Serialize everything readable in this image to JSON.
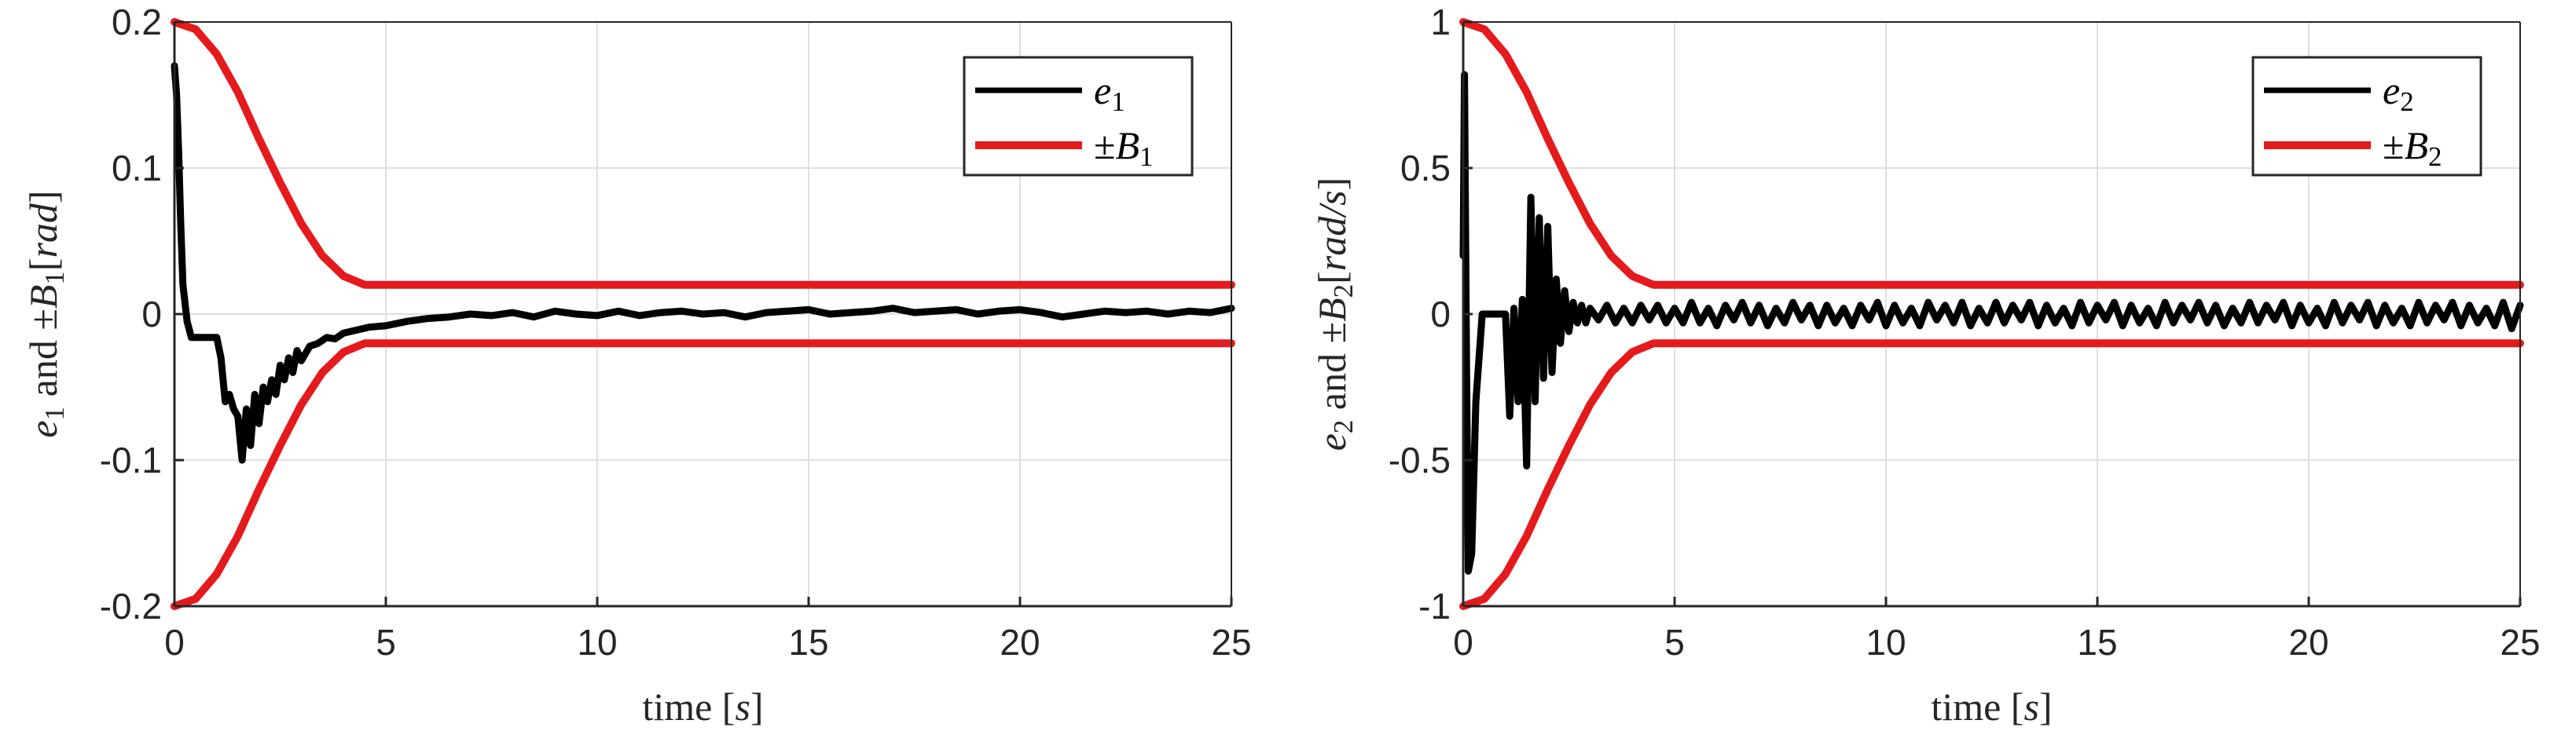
{
  "chart_data": [
    {
      "type": "line",
      "xlabel": "time [s]",
      "xlabel_parts": [
        {
          "text": "time ",
          "style": "normal"
        },
        {
          "text": "[",
          "style": "normal"
        },
        {
          "text": "s",
          "style": "italic"
        },
        {
          "text": "]",
          "style": "normal"
        }
      ],
      "ylabel": "e1 and ±B1[rad]",
      "ylabel_parts": [
        {
          "text": "e",
          "style": "italic"
        },
        {
          "text": "1",
          "style": "sub"
        },
        {
          "text": " and ±",
          "style": "normal"
        },
        {
          "text": "B",
          "style": "italic"
        },
        {
          "text": "1",
          "style": "sub"
        },
        {
          "text": "[",
          "style": "normal"
        },
        {
          "text": "rad",
          "style": "italic"
        },
        {
          "text": "]",
          "style": "normal"
        }
      ],
      "xlim": [
        0,
        25
      ],
      "ylim": [
        -0.2,
        0.2
      ],
      "xticks": [
        0,
        5,
        10,
        15,
        20,
        25
      ],
      "yticks": [
        -0.2,
        -0.1,
        0,
        0.1,
        0.2
      ],
      "xtick_labels": [
        "0",
        "5",
        "10",
        "15",
        "20",
        "25"
      ],
      "ytick_labels": [
        "-0.2",
        "-0.1",
        "0",
        "0.1",
        "0.2"
      ],
      "grid": true,
      "legend_position": "top-right",
      "legend": [
        {
          "symbol": "e",
          "sub": "1",
          "prefix": ""
        },
        {
          "symbol": "B",
          "sub": "1",
          "prefix": "±"
        }
      ],
      "series": [
        {
          "key": "error",
          "color": "#000000",
          "x": [
            0,
            0.05,
            0.1,
            0.15,
            0.2,
            0.3,
            0.4,
            0.5,
            0.8,
            1.0,
            1.1,
            1.2,
            1.3,
            1.4,
            1.5,
            1.6,
            1.7,
            1.8,
            1.9,
            2.0,
            2.1,
            2.2,
            2.3,
            2.4,
            2.5,
            2.6,
            2.7,
            2.8,
            2.9,
            3.0,
            3.2,
            3.4,
            3.6,
            3.8,
            4.0,
            4.3,
            4.6,
            5.0,
            5.5,
            6.0,
            6.5,
            7.0,
            7.5,
            8.0,
            8.5,
            9.0,
            9.5,
            10.0,
            10.5,
            11.0,
            11.5,
            12.0,
            12.5,
            13.0,
            13.5,
            14.0,
            14.5,
            15.0,
            15.5,
            16.0,
            16.5,
            17.0,
            17.5,
            18.0,
            18.5,
            19.0,
            19.5,
            20.0,
            20.5,
            21.0,
            21.5,
            22.0,
            22.5,
            23.0,
            23.5,
            24.0,
            24.5,
            25.0
          ],
          "y": [
            0.17,
            0.15,
            0.11,
            0.06,
            0.02,
            -0.005,
            -0.016,
            -0.016,
            -0.016,
            -0.016,
            -0.03,
            -0.06,
            -0.055,
            -0.065,
            -0.07,
            -0.1,
            -0.065,
            -0.09,
            -0.055,
            -0.075,
            -0.05,
            -0.06,
            -0.045,
            -0.055,
            -0.035,
            -0.045,
            -0.03,
            -0.04,
            -0.025,
            -0.032,
            -0.022,
            -0.02,
            -0.016,
            -0.017,
            -0.013,
            -0.011,
            -0.009,
            -0.008,
            -0.005,
            -0.003,
            -0.002,
            0.0,
            -0.001,
            0.001,
            -0.002,
            0.002,
            0.0,
            -0.001,
            0.002,
            -0.001,
            0.001,
            0.002,
            0.0,
            0.001,
            -0.002,
            0.001,
            0.002,
            0.003,
            0.0,
            0.001,
            0.002,
            0.004,
            0.001,
            0.002,
            0.003,
            0.0,
            0.002,
            0.003,
            0.001,
            -0.002,
            0.0,
            0.002,
            0.001,
            0.002,
            0.0,
            0.002,
            0.001,
            0.004
          ]
        },
        {
          "key": "bound_upper",
          "color": "#e41a1c",
          "x": [
            0,
            0.5,
            1.0,
            1.5,
            2.0,
            2.5,
            3.0,
            3.5,
            4.0,
            4.5,
            5.0,
            25.0
          ],
          "y": [
            0.2,
            0.195,
            0.178,
            0.152,
            0.12,
            0.09,
            0.062,
            0.04,
            0.026,
            0.02,
            0.02,
            0.02
          ]
        },
        {
          "key": "bound_lower",
          "color": "#e41a1c",
          "x": [
            0,
            0.5,
            1.0,
            1.5,
            2.0,
            2.5,
            3.0,
            3.5,
            4.0,
            4.5,
            5.0,
            25.0
          ],
          "y": [
            -0.2,
            -0.195,
            -0.178,
            -0.152,
            -0.12,
            -0.09,
            -0.062,
            -0.04,
            -0.026,
            -0.02,
            -0.02,
            -0.02
          ]
        }
      ]
    },
    {
      "type": "line",
      "xlabel": "time [s]",
      "xlabel_parts": [
        {
          "text": "time ",
          "style": "normal"
        },
        {
          "text": "[",
          "style": "normal"
        },
        {
          "text": "s",
          "style": "italic"
        },
        {
          "text": "]",
          "style": "normal"
        }
      ],
      "ylabel": "e2 and ±B2[rad/s]",
      "ylabel_parts": [
        {
          "text": "e",
          "style": "italic"
        },
        {
          "text": "2",
          "style": "sub"
        },
        {
          "text": " and ±",
          "style": "normal"
        },
        {
          "text": "B",
          "style": "italic"
        },
        {
          "text": "2",
          "style": "sub"
        },
        {
          "text": "[",
          "style": "normal"
        },
        {
          "text": "rad/s",
          "style": "italic"
        },
        {
          "text": "]",
          "style": "normal"
        }
      ],
      "xlim": [
        0,
        25
      ],
      "ylim": [
        -1,
        1
      ],
      "xticks": [
        0,
        5,
        10,
        15,
        20,
        25
      ],
      "yticks": [
        -1,
        -0.5,
        0,
        0.5,
        1
      ],
      "xtick_labels": [
        "0",
        "5",
        "10",
        "15",
        "20",
        "25"
      ],
      "ytick_labels": [
        "-1",
        "-0.5",
        "0",
        "0.5",
        "1"
      ],
      "grid": true,
      "legend_position": "top-right",
      "legend": [
        {
          "symbol": "e",
          "sub": "2",
          "prefix": ""
        },
        {
          "symbol": "B",
          "sub": "2",
          "prefix": "±"
        }
      ],
      "series": [
        {
          "key": "error",
          "color": "#000000",
          "x": [
            0,
            0.03,
            0.08,
            0.12,
            0.2,
            0.3,
            0.45,
            0.6,
            0.8,
            1.0,
            1.1,
            1.2,
            1.3,
            1.4,
            1.5,
            1.6,
            1.7,
            1.8,
            1.9,
            2.0,
            2.1,
            2.2,
            2.3,
            2.4,
            2.5,
            2.6,
            2.7,
            2.8,
            2.9,
            3.0,
            3.2,
            3.4,
            3.6,
            3.8,
            4.0,
            4.2,
            4.4,
            4.6,
            4.8,
            5.0,
            5.2,
            5.4,
            5.6,
            5.8,
            6.0,
            6.2,
            6.4,
            6.6,
            6.8,
            7.0,
            7.2,
            7.4,
            7.6,
            7.8,
            8.0,
            8.2,
            8.4,
            8.6,
            8.8,
            9.0,
            9.2,
            9.4,
            9.6,
            9.8,
            10.0,
            10.2,
            10.4,
            10.6,
            10.8,
            11.0,
            11.2,
            11.4,
            11.6,
            11.8,
            12.0,
            12.2,
            12.4,
            12.6,
            12.8,
            13.0,
            13.2,
            13.4,
            13.6,
            13.8,
            14.0,
            14.2,
            14.4,
            14.6,
            14.8,
            15.0,
            15.2,
            15.4,
            15.6,
            15.8,
            16.0,
            16.2,
            16.4,
            16.6,
            16.8,
            17.0,
            17.2,
            17.4,
            17.6,
            17.8,
            18.0,
            18.2,
            18.4,
            18.6,
            18.8,
            19.0,
            19.2,
            19.4,
            19.6,
            19.8,
            20.0,
            20.2,
            20.4,
            20.6,
            20.8,
            21.0,
            21.2,
            21.4,
            21.6,
            21.8,
            22.0,
            22.2,
            22.4,
            22.6,
            22.8,
            23.0,
            23.2,
            23.4,
            23.6,
            23.8,
            24.0,
            24.2,
            24.4,
            24.6,
            24.8,
            25.0
          ],
          "y": [
            0.2,
            0.82,
            -0.2,
            -0.88,
            -0.82,
            -0.3,
            0.0,
            0.0,
            0.0,
            0.0,
            -0.35,
            0.02,
            -0.3,
            0.05,
            -0.52,
            0.4,
            -0.3,
            0.33,
            -0.22,
            0.3,
            -0.2,
            0.12,
            -0.1,
            0.08,
            -0.06,
            0.04,
            -0.03,
            0.03,
            -0.03,
            0.02,
            -0.02,
            0.03,
            -0.03,
            0.02,
            -0.03,
            0.03,
            -0.02,
            0.03,
            -0.03,
            0.02,
            -0.03,
            0.04,
            -0.03,
            0.02,
            -0.04,
            0.03,
            -0.02,
            0.04,
            -0.03,
            0.03,
            -0.04,
            0.02,
            -0.03,
            0.04,
            -0.02,
            0.03,
            -0.04,
            0.03,
            -0.03,
            0.02,
            -0.04,
            0.03,
            -0.02,
            0.04,
            -0.04,
            0.03,
            -0.03,
            0.02,
            -0.04,
            0.04,
            -0.02,
            0.03,
            -0.03,
            0.04,
            -0.04,
            0.02,
            -0.03,
            0.04,
            -0.03,
            0.03,
            -0.02,
            0.04,
            -0.04,
            0.03,
            -0.03,
            0.02,
            -0.04,
            0.04,
            -0.03,
            0.03,
            -0.02,
            0.04,
            -0.04,
            0.03,
            -0.03,
            0.02,
            -0.04,
            0.04,
            -0.03,
            0.03,
            -0.02,
            0.04,
            -0.03,
            0.03,
            -0.04,
            0.02,
            -0.03,
            0.04,
            -0.03,
            0.03,
            -0.02,
            0.04,
            -0.04,
            0.03,
            -0.03,
            0.02,
            -0.04,
            0.04,
            -0.03,
            0.03,
            -0.02,
            0.04,
            -0.04,
            0.03,
            -0.03,
            0.02,
            -0.04,
            0.04,
            -0.03,
            0.03,
            -0.02,
            0.04,
            -0.04,
            0.03,
            -0.03,
            0.02,
            -0.04,
            0.04,
            -0.05,
            0.03
          ]
        },
        {
          "key": "bound_upper",
          "color": "#e41a1c",
          "x": [
            0,
            0.5,
            1.0,
            1.5,
            2.0,
            2.5,
            3.0,
            3.5,
            4.0,
            4.5,
            5.0,
            25.0
          ],
          "y": [
            1.0,
            0.975,
            0.89,
            0.76,
            0.6,
            0.45,
            0.31,
            0.2,
            0.13,
            0.1,
            0.1,
            0.1
          ]
        },
        {
          "key": "bound_lower",
          "color": "#e41a1c",
          "x": [
            0,
            0.5,
            1.0,
            1.5,
            2.0,
            2.5,
            3.0,
            3.5,
            4.0,
            4.5,
            5.0,
            25.0
          ],
          "y": [
            -1.0,
            -0.975,
            -0.89,
            -0.76,
            -0.6,
            -0.45,
            -0.31,
            -0.2,
            -0.13,
            -0.1,
            -0.1,
            -0.1
          ]
        }
      ]
    }
  ]
}
